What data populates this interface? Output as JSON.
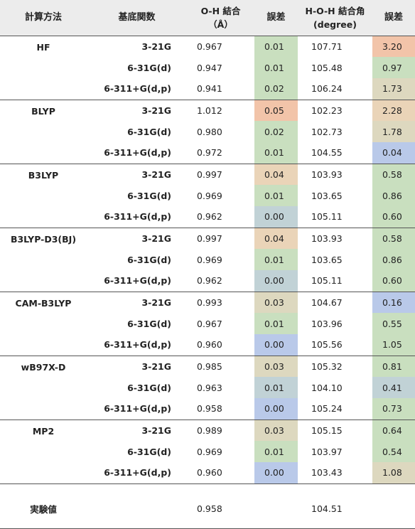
{
  "header": {
    "method": "計算方法",
    "basis": "基底関数",
    "oh_line1": "O-H 結合",
    "oh_line2": "（Å）",
    "err1": "誤差",
    "angle_line1": "H-O-H 結合角",
    "angle_line2": "(degree)",
    "err2": "誤差"
  },
  "colors": {
    "best": "#b9c9e9",
    "good": "#c9dfbf",
    "mid": "#ddd8bf",
    "fair": "#ead4b8",
    "worst": "#f2c4a9",
    "neutral": "#c1d2d6"
  },
  "groups": [
    {
      "method": "HF",
      "rows": [
        {
          "basis": "3-21G",
          "oh": "0.967",
          "err1": "0.01",
          "err1_color": "#c9dfbf",
          "angle": "107.71",
          "err2": "3.20",
          "err2_color": "#f2c4a9"
        },
        {
          "basis": "6-31G(d)",
          "oh": "0.947",
          "err1": "0.01",
          "err1_color": "#c9dfbf",
          "angle": "105.48",
          "err2": "0.97",
          "err2_color": "#c9dfbf"
        },
        {
          "basis": "6-311+G(d,p)",
          "oh": "0.941",
          "err1": "0.02",
          "err1_color": "#c9dfbf",
          "angle": "106.24",
          "err2": "1.73",
          "err2_color": "#ddd8bf"
        }
      ]
    },
    {
      "method": "BLYP",
      "rows": [
        {
          "basis": "3-21G",
          "oh": "1.012",
          "err1": "0.05",
          "err1_color": "#f2c4a9",
          "angle": "102.23",
          "err2": "2.28",
          "err2_color": "#ead4b8"
        },
        {
          "basis": "6-31G(d)",
          "oh": "0.980",
          "err1": "0.02",
          "err1_color": "#c9dfbf",
          "angle": "102.73",
          "err2": "1.78",
          "err2_color": "#ddd8bf"
        },
        {
          "basis": "6-311+G(d,p)",
          "oh": "0.972",
          "err1": "0.01",
          "err1_color": "#c9dfbf",
          "angle": "104.55",
          "err2": "0.04",
          "err2_color": "#b9c9e9"
        }
      ]
    },
    {
      "method": "B3LYP",
      "rows": [
        {
          "basis": "3-21G",
          "oh": "0.997",
          "err1": "0.04",
          "err1_color": "#ead4b8",
          "angle": "103.93",
          "err2": "0.58",
          "err2_color": "#c9dfbf"
        },
        {
          "basis": "6-31G(d)",
          "oh": "0.969",
          "err1": "0.01",
          "err1_color": "#c9dfbf",
          "angle": "103.65",
          "err2": "0.86",
          "err2_color": "#c9dfbf"
        },
        {
          "basis": "6-311+G(d,p)",
          "oh": "0.962",
          "err1": "0.00",
          "err1_color": "#c1d2d6",
          "angle": "105.11",
          "err2": "0.60",
          "err2_color": "#c9dfbf"
        }
      ]
    },
    {
      "method": "B3LYP-D3(BJ)",
      "rows": [
        {
          "basis": "3-21G",
          "oh": "0.997",
          "err1": "0.04",
          "err1_color": "#ead4b8",
          "angle": "103.93",
          "err2": "0.58",
          "err2_color": "#c9dfbf"
        },
        {
          "basis": "6-31G(d)",
          "oh": "0.969",
          "err1": "0.01",
          "err1_color": "#c9dfbf",
          "angle": "103.65",
          "err2": "0.86",
          "err2_color": "#c9dfbf"
        },
        {
          "basis": "6-311+G(d,p)",
          "oh": "0.962",
          "err1": "0.00",
          "err1_color": "#c1d2d6",
          "angle": "105.11",
          "err2": "0.60",
          "err2_color": "#c9dfbf"
        }
      ]
    },
    {
      "method": "CAM-B3LYP",
      "rows": [
        {
          "basis": "3-21G",
          "oh": "0.993",
          "err1": "0.03",
          "err1_color": "#ddd8bf",
          "angle": "104.67",
          "err2": "0.16",
          "err2_color": "#b9c9e9"
        },
        {
          "basis": "6-31G(d)",
          "oh": "0.967",
          "err1": "0.01",
          "err1_color": "#c9dfbf",
          "angle": "103.96",
          "err2": "0.55",
          "err2_color": "#c9dfbf"
        },
        {
          "basis": "6-311+G(d,p)",
          "oh": "0.960",
          "err1": "0.00",
          "err1_color": "#b9c9e9",
          "angle": "105.56",
          "err2": "1.05",
          "err2_color": "#c9dfbf"
        }
      ]
    },
    {
      "method": "wB97X-D",
      "rows": [
        {
          "basis": "3-21G",
          "oh": "0.985",
          "err1": "0.03",
          "err1_color": "#ddd8bf",
          "angle": "105.32",
          "err2": "0.81",
          "err2_color": "#c9dfbf"
        },
        {
          "basis": "6-31G(d)",
          "oh": "0.963",
          "err1": "0.01",
          "err1_color": "#c1d2d6",
          "angle": "104.10",
          "err2": "0.41",
          "err2_color": "#c1d2d6"
        },
        {
          "basis": "6-311+G(d,p)",
          "oh": "0.958",
          "err1": "0.00",
          "err1_color": "#b9c9e9",
          "angle": "105.24",
          "err2": "0.73",
          "err2_color": "#c9dfbf"
        }
      ]
    },
    {
      "method": "MP2",
      "rows": [
        {
          "basis": "3-21G",
          "oh": "0.989",
          "err1": "0.03",
          "err1_color": "#ddd8bf",
          "angle": "105.15",
          "err2": "0.64",
          "err2_color": "#c9dfbf"
        },
        {
          "basis": "6-31G(d)",
          "oh": "0.969",
          "err1": "0.01",
          "err1_color": "#c9dfbf",
          "angle": "103.97",
          "err2": "0.54",
          "err2_color": "#c9dfbf"
        },
        {
          "basis": "6-311+G(d,p)",
          "oh": "0.960",
          "err1": "0.00",
          "err1_color": "#b9c9e9",
          "angle": "103.43",
          "err2": "1.08",
          "err2_color": "#ddd8bf"
        }
      ]
    }
  ],
  "experimental": {
    "label": "実験値",
    "oh": "0.958",
    "angle": "104.51"
  }
}
